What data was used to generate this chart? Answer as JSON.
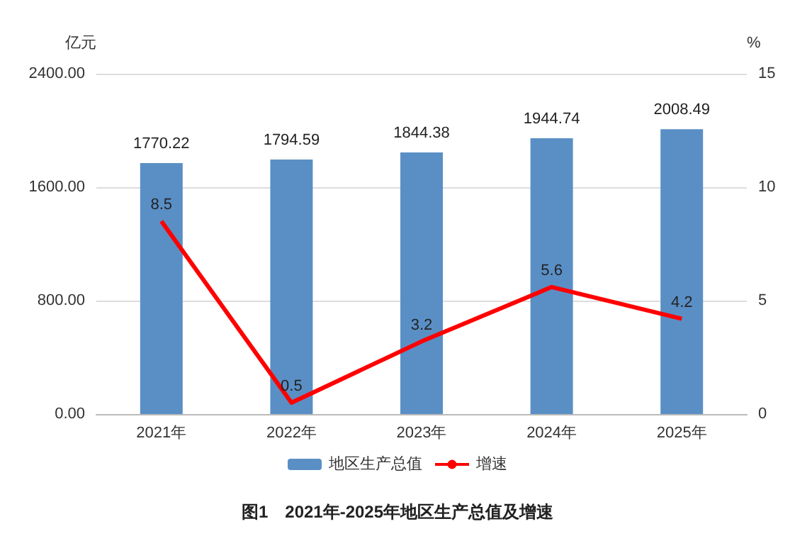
{
  "chart_data": {
    "type": "bar",
    "title": "图1　2021年-2025年地区生产总值及增速",
    "ylabel": "亿元",
    "y2label": "%",
    "categories": [
      "2021年",
      "2022年",
      "2023年",
      "2024年",
      "2025年"
    ],
    "series": [
      {
        "name": "地区生产总值",
        "color": "#5a8fc6",
        "values": [
          1770.22,
          1794.59,
          1844.38,
          1944.74,
          2008.49
        ]
      },
      {
        "name": "增速",
        "type": "line",
        "axis": "y2",
        "color": "#ff0000",
        "marker": "none",
        "values": [
          8.5,
          0.5,
          3.2,
          5.6,
          4.2
        ]
      }
    ],
    "ylim": [
      0,
      2400
    ],
    "yticks": [
      {
        "value": 0,
        "label": "0.00"
      },
      {
        "value": 800,
        "label": "800.00"
      },
      {
        "value": 1600,
        "label": "1600.00"
      },
      {
        "value": 2400,
        "label": "2400.00"
      }
    ],
    "y2lim": [
      0,
      15
    ],
    "y2ticks": [
      0,
      5,
      10,
      15
    ],
    "data_labels": true,
    "grid": "y",
    "legend": "bottom"
  }
}
